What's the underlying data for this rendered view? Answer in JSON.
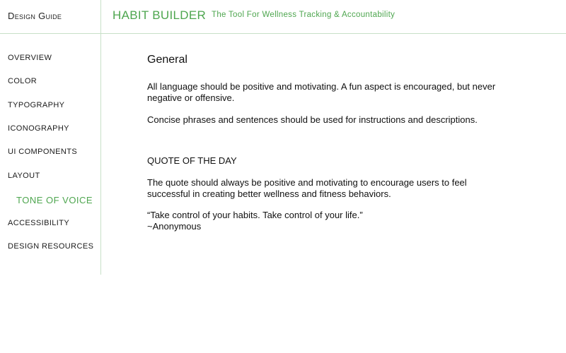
{
  "header": {
    "guide_title": "Design Guide",
    "brand": "HABIT BUILDER",
    "tagline": "The Tool For Wellness Tracking & Accountability"
  },
  "sidebar": {
    "items": [
      {
        "label": "OVERVIEW"
      },
      {
        "label": "COLOR"
      },
      {
        "label": "TYPOGRAPHY"
      },
      {
        "label": "ICONOGRAPHY"
      },
      {
        "label": "UI COMPONENTS"
      },
      {
        "label": "LAYOUT"
      },
      {
        "label": "TONE OF VOICE",
        "active": true
      },
      {
        "label": "ACCESSIBILITY"
      },
      {
        "label": "DESIGN RESOURCES"
      }
    ]
  },
  "main": {
    "heading": "General",
    "para1": "All language should be positive and motivating. A fun aspect is encouraged, but never negative or offensive.",
    "para2": "Concise phrases and sentences should be used for instructions and descriptions.",
    "quote_heading": "QUOTE OF THE DAY",
    "para3": "The quote should always be positive and motivating to encourage users to feel successful in creating better wellness and fitness behaviors.",
    "quote": "“Take control of your habits. Take control of your life.”",
    "quote_author": "~Anonymous"
  },
  "colors": {
    "accent": "#4ea64f",
    "divider": "#c8e0c8"
  }
}
